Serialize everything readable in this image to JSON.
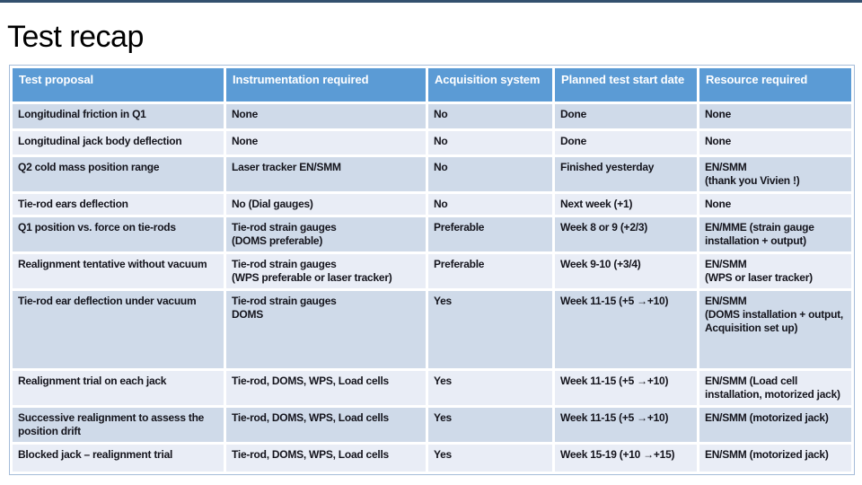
{
  "title": "Test recap",
  "colors": {
    "header_bg": "#5b9bd5",
    "row_odd_bg": "#cfdae9",
    "row_even_bg": "#e9edf6",
    "header_text": "#ffffff",
    "body_text": "#14141c",
    "table_border": "#a5bcd9",
    "top_stripe": "#33506e"
  },
  "table": {
    "columns": [
      "Test proposal",
      "Instrumentation required",
      "Acquisition system",
      "Planned test start date",
      "Resource required"
    ],
    "rows": [
      {
        "cells": [
          "Longitudinal friction in Q1",
          "None",
          "No",
          "Done",
          "None"
        ]
      },
      {
        "cells": [
          "Longitudinal jack body deflection",
          "None",
          "No",
          "Done",
          "None"
        ]
      },
      {
        "cells": [
          "Q2 cold mass position range",
          "Laser tracker EN/SMM",
          "No",
          "Finished yesterday",
          "EN/SMM\n(thank you Vivien !)"
        ]
      },
      {
        "cells": [
          "Tie-rod ears deflection",
          "No (Dial gauges)",
          "No",
          "Next week (+1)",
          "None"
        ]
      },
      {
        "cells": [
          "Q1 position vs. force on tie-rods",
          "Tie-rod strain gauges\n(DOMS preferable)",
          "Preferable",
          "Week 8 or 9 (+2/3)",
          "EN/MME (strain gauge installation + output)"
        ]
      },
      {
        "cells": [
          "Realignment tentative without vacuum",
          "Tie-rod strain gauges\n(WPS preferable or laser tracker)",
          "Preferable",
          "Week 9-10 (+3/4)",
          "EN/SMM\n(WPS or laser tracker)"
        ]
      },
      {
        "cells": [
          "Tie-rod ear deflection under vacuum",
          "Tie-rod strain gauges\nDOMS",
          "Yes",
          "Week 11-15 (+5 →+10)",
          "EN/SMM\n(DOMS installation + output,\nAcquisition set up)"
        ]
      },
      {
        "cells": [
          "Realignment trial on each jack",
          "Tie-rod, DOMS, WPS, Load cells",
          "Yes",
          "Week 11-15 (+5 →+10)",
          "EN/SMM (Load cell installation, motorized jack)"
        ]
      },
      {
        "cells": [
          "Successive realignment to assess the position drift",
          "Tie-rod, DOMS, WPS, Load cells",
          "Yes",
          "Week 11-15 (+5 →+10)",
          "EN/SMM (motorized jack)"
        ]
      },
      {
        "cells": [
          "Blocked jack – realignment trial",
          "Tie-rod, DOMS, WPS, Load cells",
          "Yes",
          "Week 15-19 (+10 →+15)",
          "EN/SMM (motorized jack)"
        ]
      }
    ]
  }
}
